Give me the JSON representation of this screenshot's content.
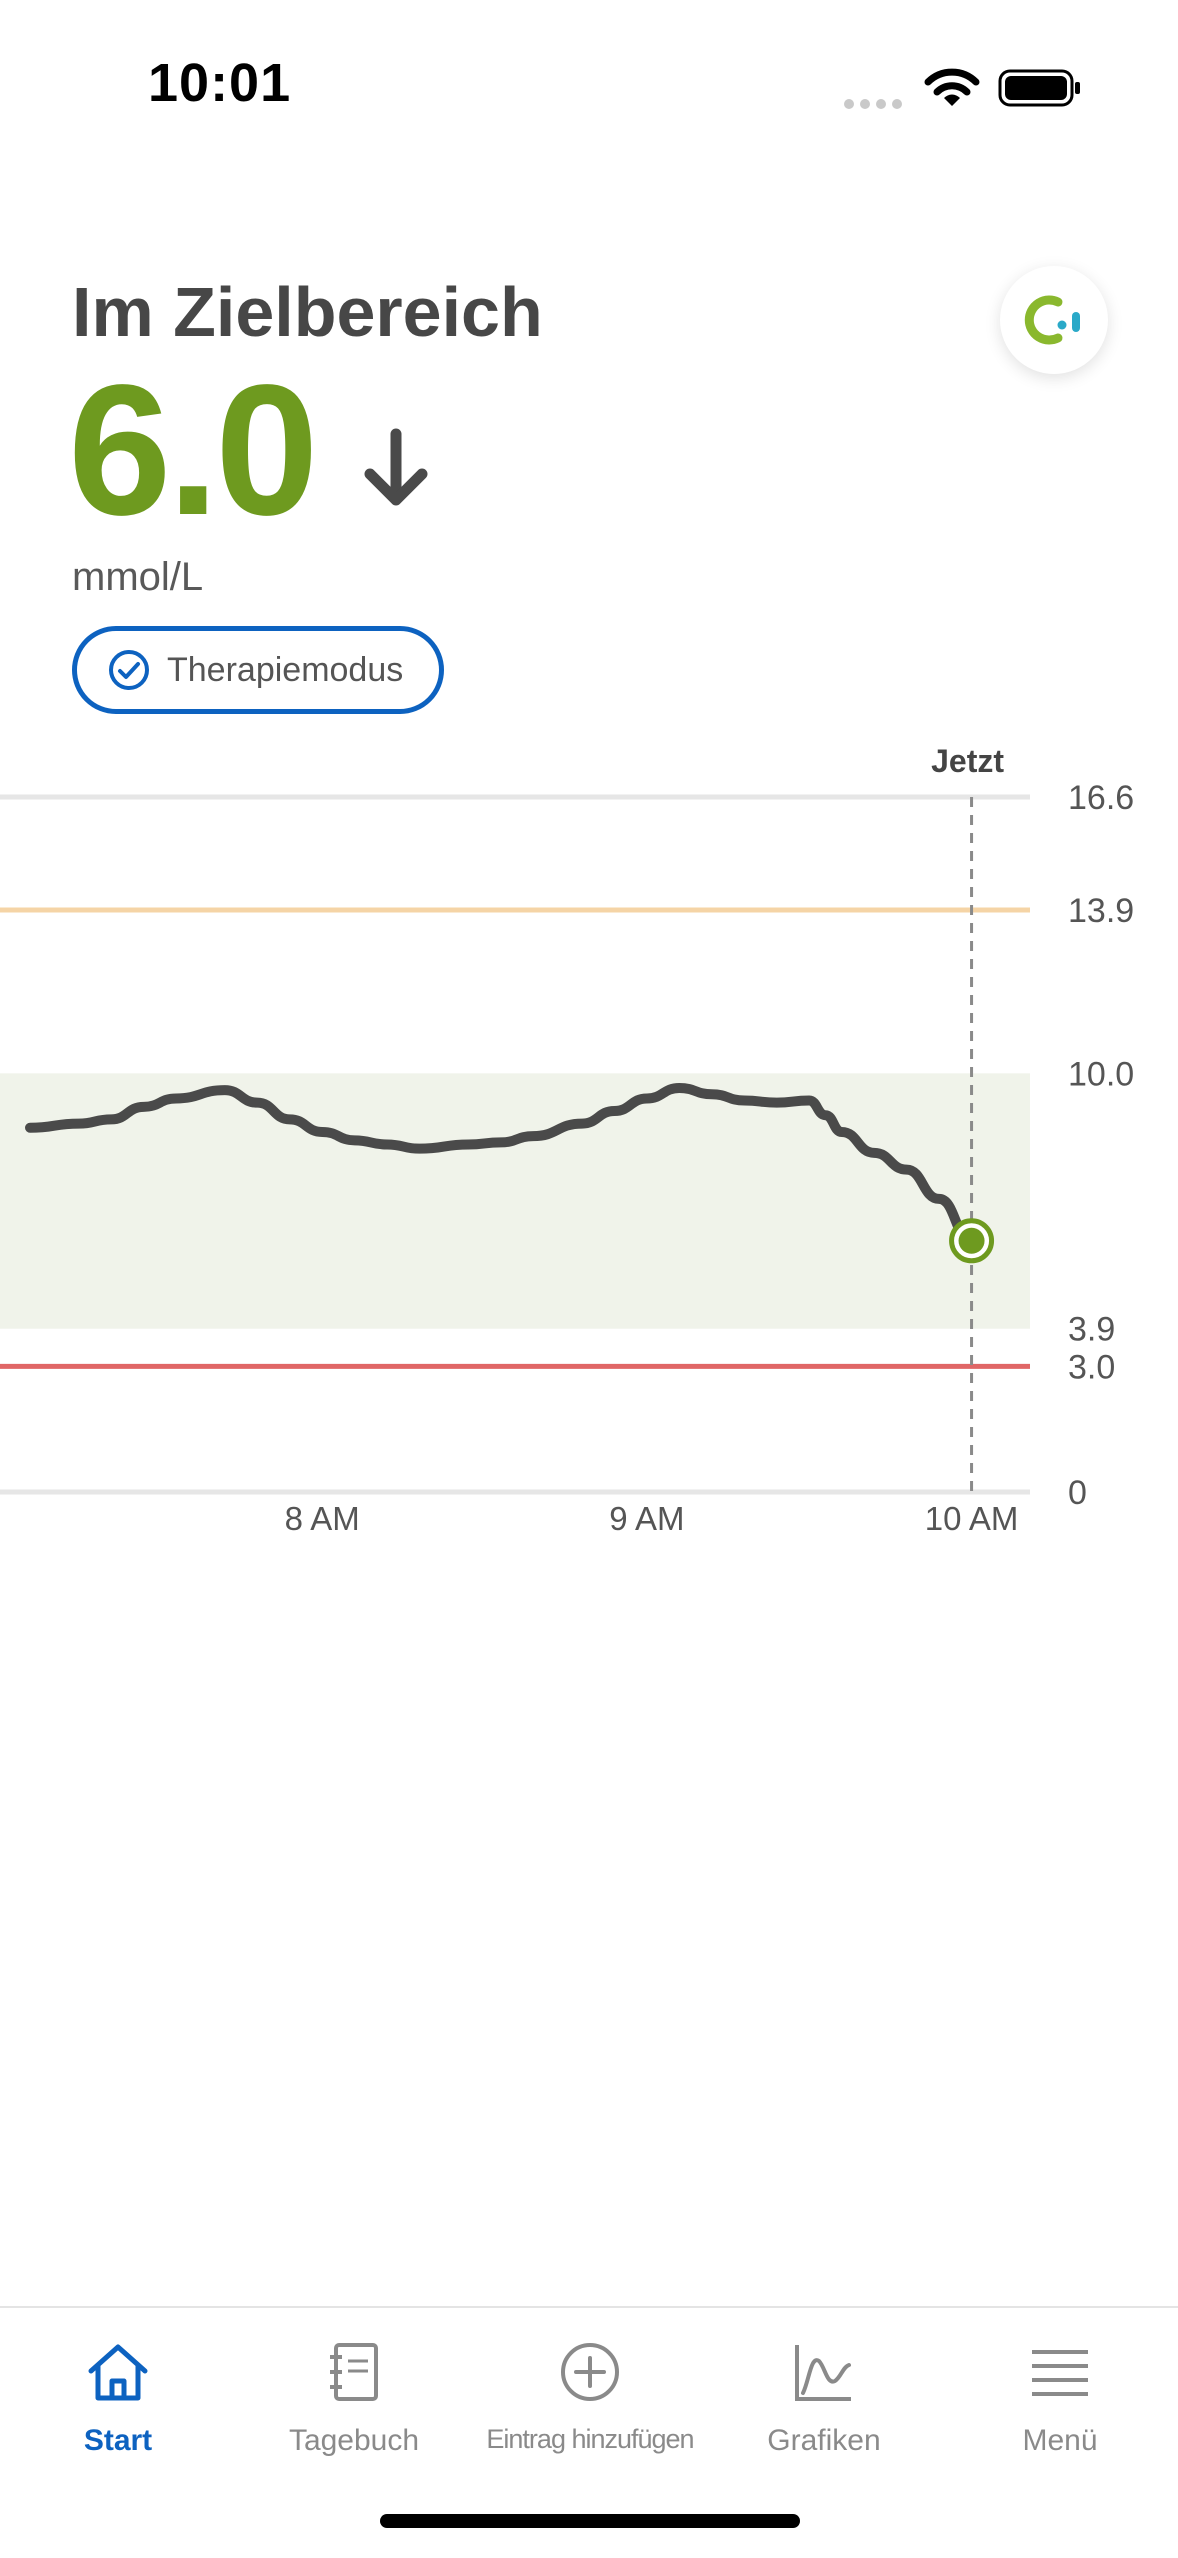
{
  "status_bar": {
    "time": "10:01",
    "icons": [
      "signal-dots-icon",
      "wifi-icon",
      "battery-icon"
    ]
  },
  "glucose": {
    "status_title": "Im Zielbereich",
    "value": "6.0",
    "unit": "mmol/L",
    "trend": "arrow-down-icon",
    "value_color": "#6e9a1f"
  },
  "therapy_mode": {
    "label": "Therapiemodus",
    "icon": "check-circle-icon",
    "color": "#0d62c0"
  },
  "app_logo": {
    "icon": "libre-logo-icon"
  },
  "chart_data": {
    "type": "line",
    "now_label": "Jetzt",
    "x_tick_labels": [
      "8 AM",
      "9 AM",
      "10 AM"
    ],
    "y_tick_labels": [
      "16.6",
      "13.9",
      "10.0",
      "3.9",
      "3.0",
      "0"
    ],
    "ylim": [
      0,
      16.6
    ],
    "target_range": [
      3.9,
      10.0
    ],
    "high_threshold": 13.9,
    "low_threshold": 3.0,
    "x_hours_range": [
      7.1,
      10.18
    ],
    "now_time": 10.0,
    "series": [
      {
        "x": [
          7.1,
          7.25,
          7.35,
          7.45,
          7.55,
          7.7,
          7.8,
          7.9,
          8.0,
          8.1,
          8.2,
          8.3,
          8.45,
          8.55,
          8.65,
          8.8,
          8.9,
          9.0,
          9.1,
          9.2,
          9.3,
          9.4,
          9.5,
          9.55,
          9.6,
          9.7,
          9.8,
          9.9,
          10.0
        ],
        "y": [
          8.7,
          8.8,
          8.9,
          9.2,
          9.4,
          9.6,
          9.3,
          8.9,
          8.6,
          8.4,
          8.3,
          8.2,
          8.3,
          8.35,
          8.5,
          8.8,
          9.1,
          9.4,
          9.65,
          9.5,
          9.35,
          9.3,
          9.35,
          9.0,
          8.6,
          8.1,
          7.7,
          7.0,
          6.0
        ]
      }
    ],
    "colors": {
      "line": "#4a4a4a",
      "target_band": "#f0f3ea",
      "high_line": "#f5d4a6",
      "low_line": "#e06666",
      "grid": "#e6e6e6",
      "current_point": "#6e9a1f"
    }
  },
  "tabbar": {
    "tabs": [
      {
        "label": "Start",
        "icon": "home-icon",
        "active": true
      },
      {
        "label": "Tagebuch",
        "icon": "notebook-icon",
        "active": false
      },
      {
        "label": "Eintrag hinzufügen",
        "icon": "add-circle-icon",
        "active": false
      },
      {
        "label": "Grafiken",
        "icon": "chart-icon",
        "active": false
      },
      {
        "label": "Menü",
        "icon": "menu-icon",
        "active": false
      }
    ],
    "active_color": "#0d62c0",
    "inactive_color": "#8a8a8a"
  }
}
